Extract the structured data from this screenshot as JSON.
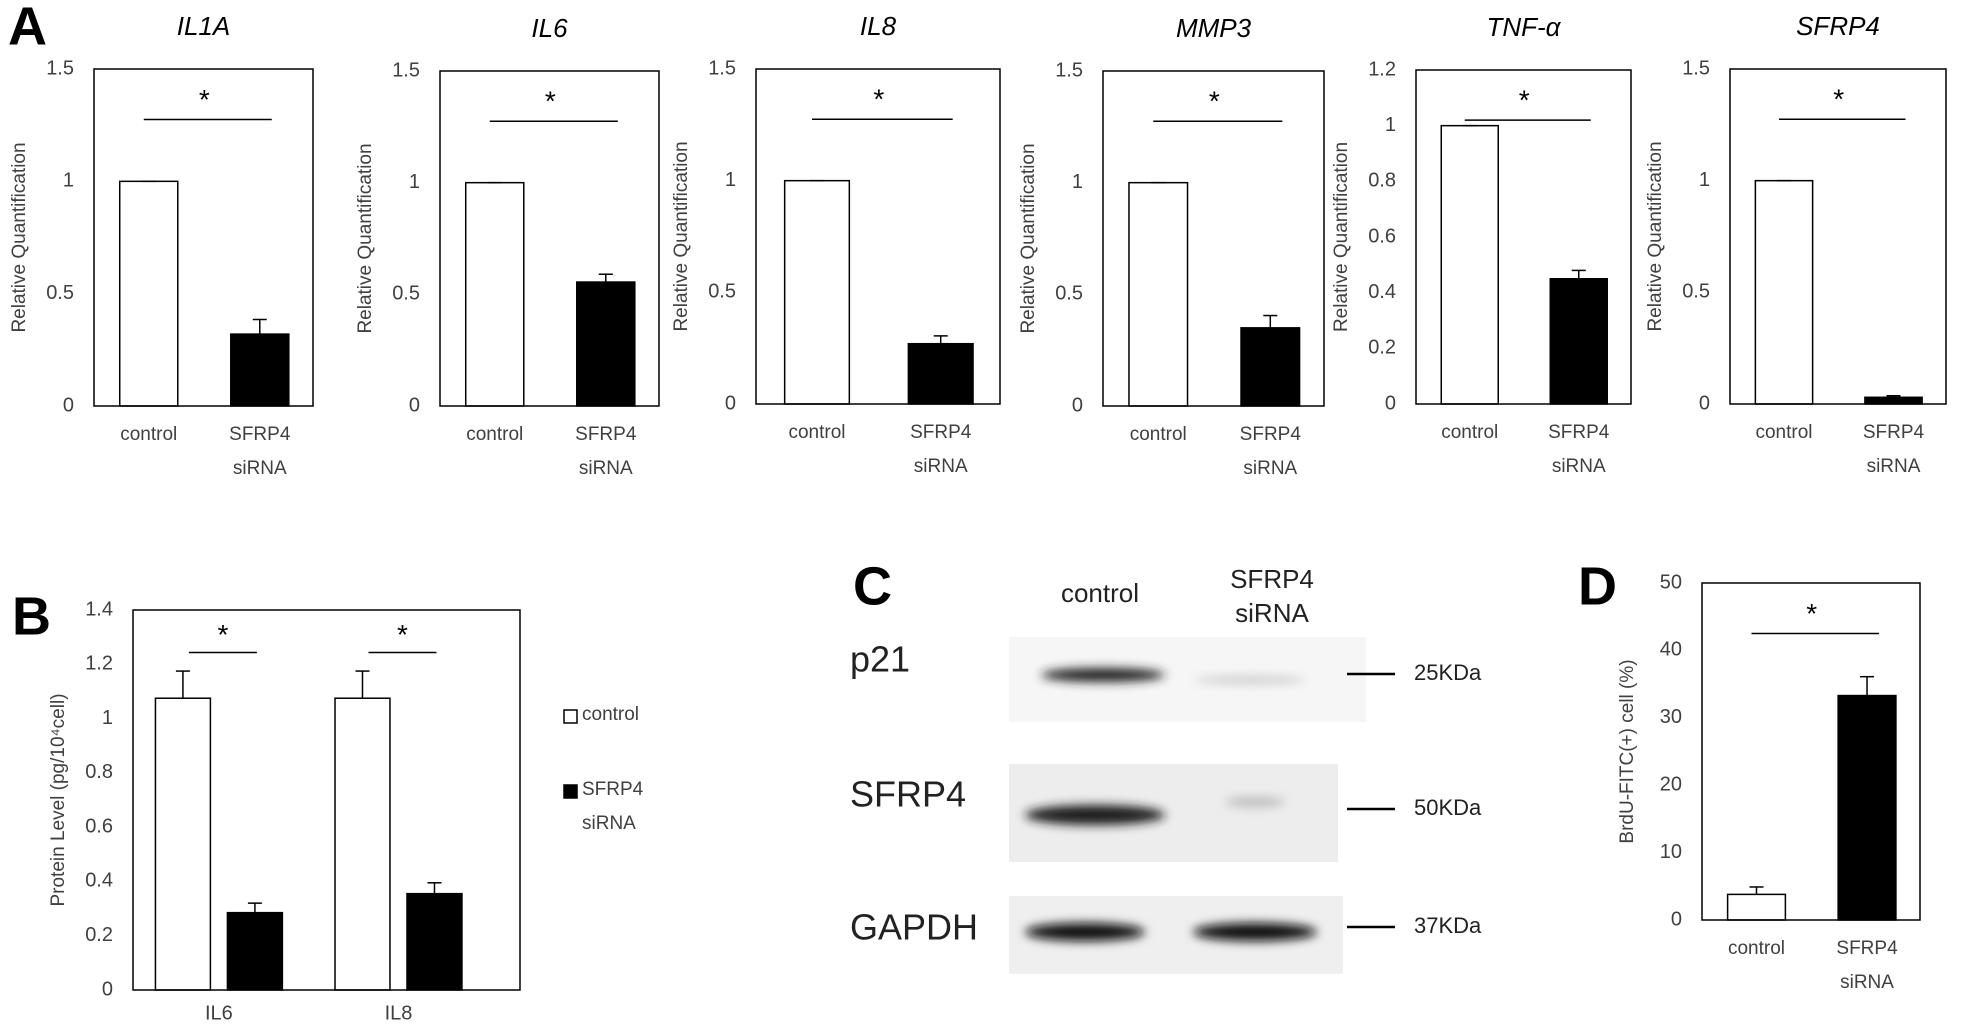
{
  "panel_labels": [
    "A",
    "B",
    "C",
    "D"
  ],
  "chart_data": [
    {
      "type": "bar",
      "title": "IL1A",
      "ylabel": "Relative Quantification",
      "categories": [
        "control",
        "SFRP4 siRNA"
      ],
      "values": [
        1,
        0.32
      ],
      "errors": [
        0,
        0.065
      ],
      "colors": [
        "#ffffff",
        "#000000"
      ],
      "ylim": [
        0,
        1.5
      ],
      "yticks": [
        0,
        0.5,
        1,
        1.5
      ],
      "significance": "*",
      "grid": false
    },
    {
      "type": "bar",
      "title": "IL6",
      "ylabel": "Relative Quantification",
      "categories": [
        "control",
        "SFRP4 siRNA"
      ],
      "values": [
        1,
        0.555
      ],
      "errors": [
        0,
        0.035
      ],
      "colors": [
        "#ffffff",
        "#000000"
      ],
      "ylim": [
        0,
        1.5
      ],
      "yticks": [
        0,
        0.5,
        1,
        1.5
      ],
      "significance": "*",
      "grid": false
    },
    {
      "type": "bar",
      "title": "IL8",
      "ylabel": "Relative Quantification",
      "categories": [
        "control",
        "SFRP4 siRNA"
      ],
      "values": [
        1,
        0.27
      ],
      "errors": [
        0,
        0.035
      ],
      "colors": [
        "#ffffff",
        "#000000"
      ],
      "ylim": [
        0,
        1.5
      ],
      "yticks": [
        0,
        0.5,
        1,
        1.5
      ],
      "significance": "*",
      "grid": false
    },
    {
      "type": "bar",
      "title": "MMP3",
      "ylabel": "Relative Quantification",
      "categories": [
        "control",
        "SFRP4 siRNA"
      ],
      "values": [
        1,
        0.35
      ],
      "errors": [
        0,
        0.055
      ],
      "colors": [
        "#ffffff",
        "#000000"
      ],
      "ylim": [
        0,
        1.5
      ],
      "yticks": [
        0,
        0.5,
        1,
        1.5
      ],
      "significance": "*",
      "grid": false
    },
    {
      "type": "bar",
      "title": "TNF-α",
      "ylabel": "Relative Quantification",
      "categories": [
        "control",
        "SFRP4 siRNA"
      ],
      "values": [
        1,
        0.45
      ],
      "errors": [
        0,
        0.03
      ],
      "colors": [
        "#ffffff",
        "#000000"
      ],
      "ylim": [
        0,
        1.2
      ],
      "yticks": [
        0,
        0.2,
        0.4,
        0.6,
        0.8,
        1,
        1.2
      ],
      "significance": "*",
      "grid": false
    },
    {
      "type": "bar",
      "title": "SFRP4",
      "ylabel": "Relative Quantification",
      "categories": [
        "control",
        "SFRP4 siRNA"
      ],
      "values": [
        1,
        0.03
      ],
      "errors": [
        0,
        0.007
      ],
      "colors": [
        "#ffffff",
        "#000000"
      ],
      "ylim": [
        0,
        1.5
      ],
      "yticks": [
        0,
        0.5,
        1,
        1.5
      ],
      "significance": "*",
      "grid": false
    },
    {
      "type": "bar",
      "ylabel": "Protein Level (pg/10⁴cell)",
      "categories": [
        "IL6",
        "IL8"
      ],
      "series": [
        {
          "name": "control",
          "color": "#ffffff",
          "values": [
            1.075,
            1.075
          ],
          "errors": [
            0.1,
            0.1
          ]
        },
        {
          "name": "SFRP4 siRNA",
          "color": "#000000",
          "values": [
            0.285,
            0.355
          ],
          "errors": [
            0.035,
            0.04
          ]
        }
      ],
      "ylim": [
        0,
        1.4
      ],
      "yticks": [
        0,
        0.2,
        0.4,
        0.6,
        0.8,
        1,
        1.2,
        1.4
      ],
      "significance": [
        "*",
        "*"
      ],
      "legend": "right",
      "grid": false
    },
    {
      "type": "bar",
      "ylabel": "BrdU-FITC(+) cell (%)",
      "categories": [
        "control",
        "SFRP4 siRNA"
      ],
      "values": [
        3.8,
        33.3
      ],
      "errors": [
        1.1,
        2.8
      ],
      "colors": [
        "#ffffff",
        "#000000"
      ],
      "ylim": [
        0,
        50
      ],
      "yticks": [
        0,
        10,
        20,
        30,
        40,
        50
      ],
      "significance": "*",
      "grid": false
    }
  ],
  "blot": {
    "columns": [
      "control",
      "SFRP4 siRNA"
    ],
    "rows": [
      {
        "protein": "p21",
        "marker": "25KDa"
      },
      {
        "protein": "SFRP4",
        "marker": "50KDa"
      },
      {
        "protein": "GAPDH",
        "marker": "37KDa"
      }
    ]
  }
}
